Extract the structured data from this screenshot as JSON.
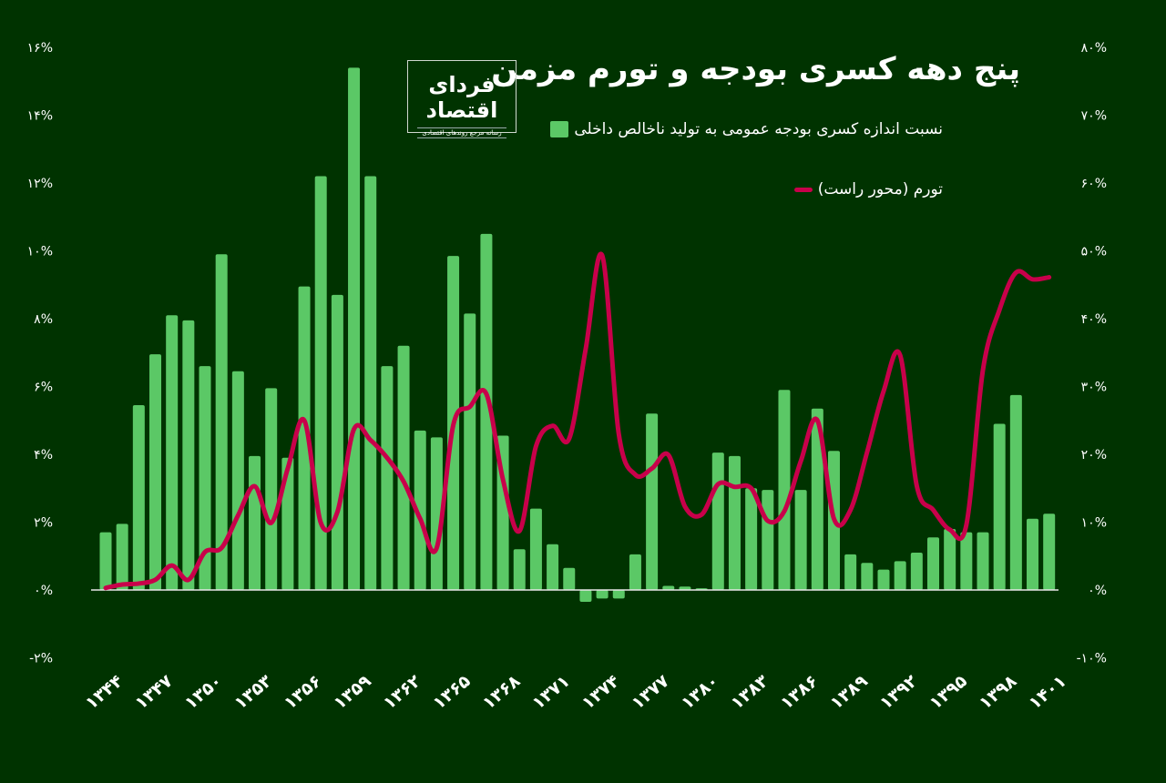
{
  "chart_data": {
    "type": "bar+line",
    "title": "پنج دهه کسری بودجه و تورم مزمن",
    "categories": [
      "۱۳۴۴",
      "۱۳۴۵",
      "۱۳۴۶",
      "۱۳۴۷",
      "۱۳۴۸",
      "۱۳۴۹",
      "۱۳۵۰",
      "۱۳۵۱",
      "۱۳۵۲",
      "۱۳۵۳",
      "۱۳۵۴",
      "۱۳۵۵",
      "۱۳۵۶",
      "۱۳۵۷",
      "۱۳۵۸",
      "۱۳۵۹",
      "۱۳۶۰",
      "۱۳۶۱",
      "۱۳۶۲",
      "۱۳۶۳",
      "۱۳۶۴",
      "۱۳۶۵",
      "۱۳۶۶",
      "۱۳۶۷",
      "۱۳۶۸",
      "۱۳۶۹",
      "۱۳۷۰",
      "۱۳۷۱",
      "۱۳۷۲",
      "۱۳۷۳",
      "۱۳۷۴",
      "۱۳۷۵",
      "۱۳۷۶",
      "۱۳۷۷",
      "۱۳۷۸",
      "۱۳۷۹",
      "۱۳۸۰",
      "۱۳۸۱",
      "۱۳۸۲",
      "۱۳۸۳",
      "۱۳۸۴",
      "۱۳۸۵",
      "۱۳۸۶",
      "۱۳۸۷",
      "۱۳۸۸",
      "۱۳۸۹",
      "۱۳۹۰",
      "۱۳۹۱",
      "۱۳۹۲",
      "۱۳۹۳",
      "۱۳۹۴",
      "۱۳۹۵",
      "۱۳۹۶",
      "۱۳۹۷",
      "۱۳۹۸",
      "۱۳۹۹",
      "۱۴۰۰",
      "۱۴۰۱"
    ],
    "xtick_labels": [
      "۱۳۴۴",
      "۱۳۴۷",
      "۱۳۵۰",
      "۱۳۵۳",
      "۱۳۵۶",
      "۱۳۵۹",
      "۱۳۶۲",
      "۱۳۶۵",
      "۱۳۶۸",
      "۱۳۷۱",
      "۱۳۷۴",
      "۱۳۷۷",
      "۱۳۸۰",
      "۱۳۸۳",
      "۱۳۸۶",
      "۱۳۸۹",
      "۱۳۹۲",
      "۱۳۹۵",
      "۱۳۹۸",
      "۱۴۰۱"
    ],
    "xtick_every": 3,
    "series": [
      {
        "name": "نسبت اندازه کسری بودجه عمومی به تولید ناخالص داخلی",
        "type": "bar",
        "axis": "left",
        "color": "#5bc866",
        "values": [
          1.7,
          1.95,
          5.45,
          6.95,
          8.1,
          7.95,
          6.6,
          9.9,
          6.45,
          3.95,
          5.95,
          3.9,
          8.95,
          12.2,
          8.7,
          15.4,
          12.2,
          6.6,
          7.2,
          4.7,
          4.5,
          9.85,
          8.15,
          10.5,
          4.55,
          1.2,
          2.4,
          1.35,
          0.65,
          -0.35,
          -0.25,
          -0.25,
          1.05,
          5.2,
          0.12,
          0.1,
          0.05,
          4.05,
          3.95,
          3.0,
          2.95,
          5.9,
          2.95,
          5.35,
          4.1,
          1.05,
          0.8,
          0.6,
          0.85,
          1.1,
          1.55,
          1.8,
          1.7,
          1.7,
          4.9,
          5.75,
          2.1,
          2.25
        ]
      },
      {
        "name": "تورم (محور راست)",
        "type": "line",
        "axis": "right",
        "color": "#c8004a",
        "values": [
          0.3,
          0.8,
          0.95,
          1.5,
          3.6,
          1.5,
          5.6,
          6.2,
          11,
          15.3,
          9.9,
          17.9,
          25.0,
          9.9,
          11.5,
          23.7,
          22.1,
          19.5,
          16.0,
          10.5,
          6.2,
          24.3,
          27.0,
          28.9,
          16.3,
          8.7,
          21.2,
          24.2,
          22.3,
          35.5,
          49.3,
          23.0,
          17.0,
          17.9,
          19.9,
          12.3,
          11.1,
          15.6,
          15.2,
          15.0,
          10.2,
          11.6,
          19.0,
          25.0,
          10.5,
          11.8,
          20.3,
          29.3,
          34.6,
          15.4,
          11.8,
          8.9,
          9.6,
          32.4,
          41.3,
          46.8,
          45.8,
          46.1
        ]
      }
    ],
    "left_axis": {
      "ylim": [
        -2,
        16
      ],
      "ticks": [
        16,
        14,
        12,
        10,
        8,
        6,
        4,
        2,
        0,
        -2
      ],
      "tick_labels": [
        "۱۶%",
        "۱۴%",
        "۱۲%",
        "۱۰%",
        "۸%",
        "۶%",
        "۴%",
        "۲%",
        "۰%",
        "-۲%"
      ]
    },
    "right_axis": {
      "ylim": [
        -10,
        80
      ],
      "ticks": [
        80,
        70,
        60,
        50,
        40,
        30,
        20,
        10,
        0,
        -10
      ],
      "tick_labels": [
        "۸۰%",
        "۷۰%",
        "۶۰%",
        "۵۰%",
        "۴۰%",
        "۳۰%",
        "۲۰%",
        "۱۰%",
        "۰%",
        "-۱۰%"
      ]
    },
    "grid": false,
    "zero_line": true,
    "legend_placement": "top-center",
    "background": "#003300"
  },
  "logo": {
    "name": "فردای اقتصاد",
    "tagline": "رسانه مرجع روندهای اقتصادی"
  }
}
